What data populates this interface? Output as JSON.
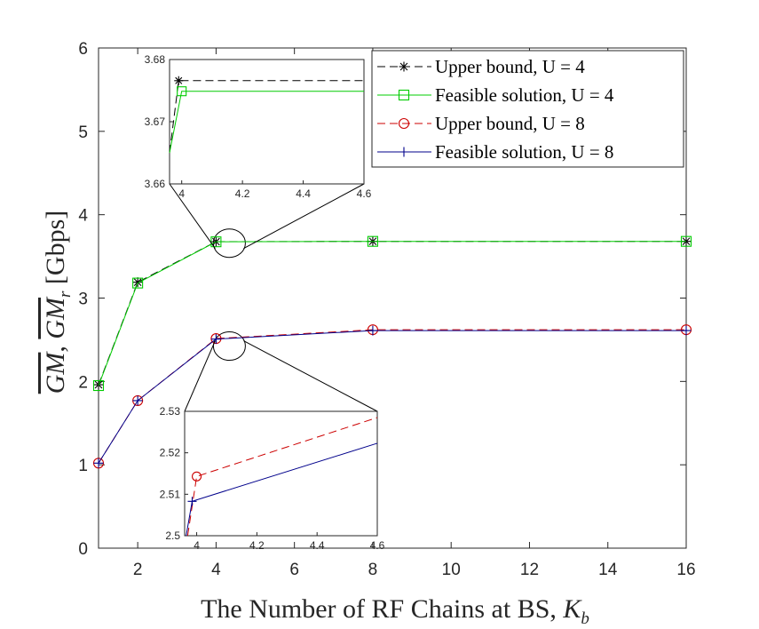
{
  "chart_data": {
    "type": "line",
    "xlabel": "The Number of RF Chains at BS, K_b",
    "xlabel_main": "The Number of RF Chains at BS, ",
    "xlabel_var": "K",
    "xlabel_sub": "b",
    "ylabel": "GM, GM_r [Gbps]",
    "ylabel_gm1": "GM",
    "ylabel_comma": ", ",
    "ylabel_gm2": "GM",
    "ylabel_sub": "r",
    "ylabel_unit": " [Gbps]",
    "x": [
      1,
      2,
      4,
      8,
      16
    ],
    "xlim": [
      1,
      16
    ],
    "ylim": [
      0,
      6
    ],
    "xticks": [
      2,
      4,
      6,
      8,
      10,
      12,
      14,
      16
    ],
    "yticks": [
      0,
      1,
      2,
      3,
      4,
      5,
      6
    ],
    "grid": false,
    "legend_position": "top-right",
    "series": [
      {
        "name": "Upper bound, U = 4",
        "color": "#000000",
        "dash": "dashed",
        "marker": "asterisk",
        "values": [
          1.96,
          3.19,
          3.6766,
          3.68,
          3.68
        ]
      },
      {
        "name": "Feasible solution, U = 4",
        "color": "#00cc00",
        "dash": "solid",
        "marker": "square",
        "values": [
          1.95,
          3.18,
          3.6749,
          3.68,
          3.68
        ]
      },
      {
        "name": "Upper bound, U = 8",
        "color": "#cc0000",
        "dash": "dashed",
        "marker": "circle",
        "values": [
          1.02,
          1.77,
          2.5143,
          2.62,
          2.62
        ]
      },
      {
        "name": "Feasible solution, U = 8",
        "color": "#00008b",
        "dash": "solid",
        "marker": "plus",
        "values": [
          1.02,
          1.77,
          2.5083,
          2.61,
          2.61
        ]
      }
    ],
    "insets": [
      {
        "location": "upper",
        "xlim": [
          3.96,
          4.6
        ],
        "ylim": [
          3.66,
          3.68
        ],
        "xticks": [
          4,
          4.2,
          4.4,
          4.6
        ],
        "xtick_labels": [
          "4",
          "4.2",
          "4.4",
          "4.6"
        ],
        "yticks": [
          3.66,
          3.67,
          3.68
        ],
        "ytick_labels": [
          "3.66",
          "3.67",
          "3.68"
        ],
        "lines": [
          {
            "series": 0,
            "points": [
              [
                3.96,
                3.665
              ],
              [
                3.99,
                3.6766
              ],
              [
                4.6,
                3.6766
              ]
            ]
          },
          {
            "series": 1,
            "points": [
              [
                3.96,
                3.665
              ],
              [
                4.0,
                3.6749
              ],
              [
                4.6,
                3.6749
              ]
            ]
          }
        ]
      },
      {
        "location": "lower",
        "xlim": [
          3.96,
          4.6
        ],
        "ylim": [
          2.5,
          2.53
        ],
        "xticks": [
          4,
          4.2,
          4.4,
          4.6
        ],
        "xtick_labels": [
          "4",
          "4.2",
          "4.4",
          "4.6"
        ],
        "yticks": [
          2.5,
          2.51,
          2.52,
          2.53
        ],
        "ytick_labels": [
          "2.5",
          "2.51",
          "2.52",
          "2.53"
        ],
        "lines": [
          {
            "series": 2,
            "points": [
              [
                3.97,
                2.5
              ],
              [
                4.0,
                2.5143
              ],
              [
                4.6,
                2.5285
              ]
            ]
          },
          {
            "series": 3,
            "points": [
              [
                3.965,
                2.5
              ],
              [
                3.985,
                2.5083
              ],
              [
                4.6,
                2.5223
              ]
            ]
          }
        ]
      }
    ]
  }
}
